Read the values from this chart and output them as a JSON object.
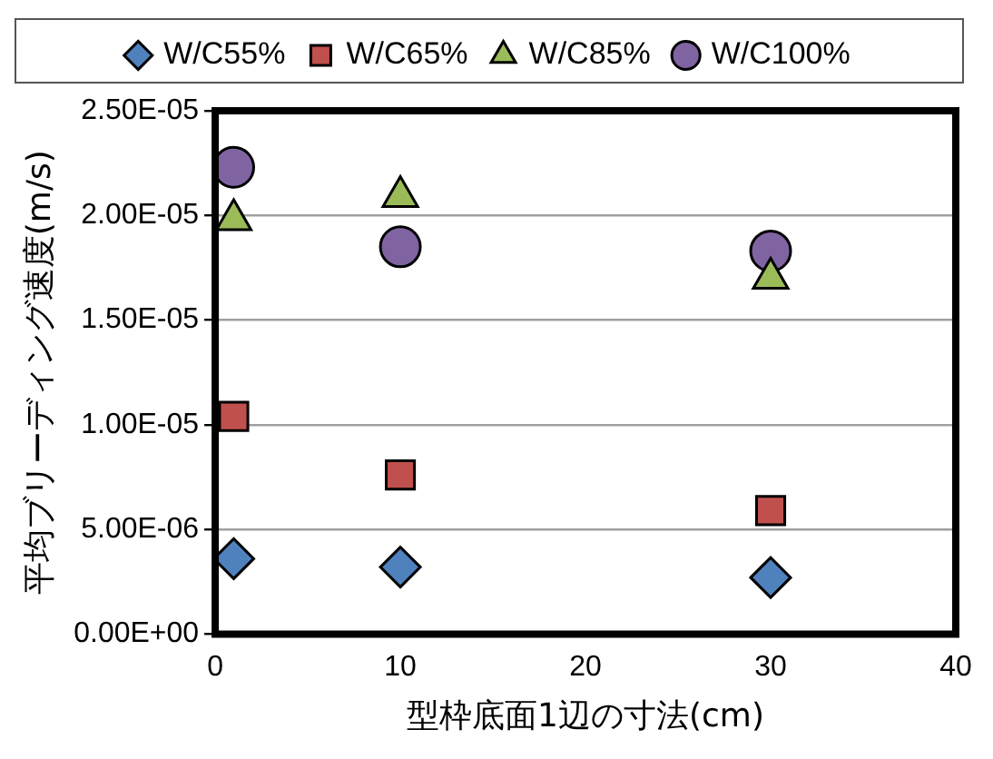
{
  "chart_data": {
    "type": "scatter",
    "xlabel": "型枠底面1辺の寸法(cm)",
    "ylabel": "平均ブリーディング速度(m/s)",
    "x": [
      1,
      10,
      30
    ],
    "series": [
      {
        "name": "W/C55%",
        "color": "#4f81bd",
        "marker": "diamond",
        "values": [
          3.6e-06,
          3.2e-06,
          2.7e-06
        ]
      },
      {
        "name": "W/C65%",
        "color": "#c0504d",
        "marker": "square",
        "values": [
          1.04e-05,
          7.6e-06,
          5.9e-06
        ]
      },
      {
        "name": "W/C85%",
        "color": "#9bbb59",
        "marker": "triangle",
        "values": [
          1.98e-05,
          2.09e-05,
          1.7e-05
        ]
      },
      {
        "name": "W/C100%",
        "color": "#8064a2",
        "marker": "circle",
        "values": [
          2.23e-05,
          1.85e-05,
          1.83e-05
        ]
      }
    ],
    "xlim": [
      0,
      40
    ],
    "xticks": [
      0,
      10,
      20,
      30,
      40
    ],
    "ylim": [
      0,
      2.5e-05
    ],
    "yticks": [
      {
        "value": 0,
        "label": "0.00E+00"
      },
      {
        "value": 5e-06,
        "label": "5.00E-06"
      },
      {
        "value": 1e-05,
        "label": "1.00E-05"
      },
      {
        "value": 1.5e-05,
        "label": "1.50E-05"
      },
      {
        "value": 2e-05,
        "label": "2.00E-05"
      },
      {
        "value": 2.5e-05,
        "label": "2.50E-05"
      }
    ],
    "grid": "y",
    "legend": "top"
  }
}
